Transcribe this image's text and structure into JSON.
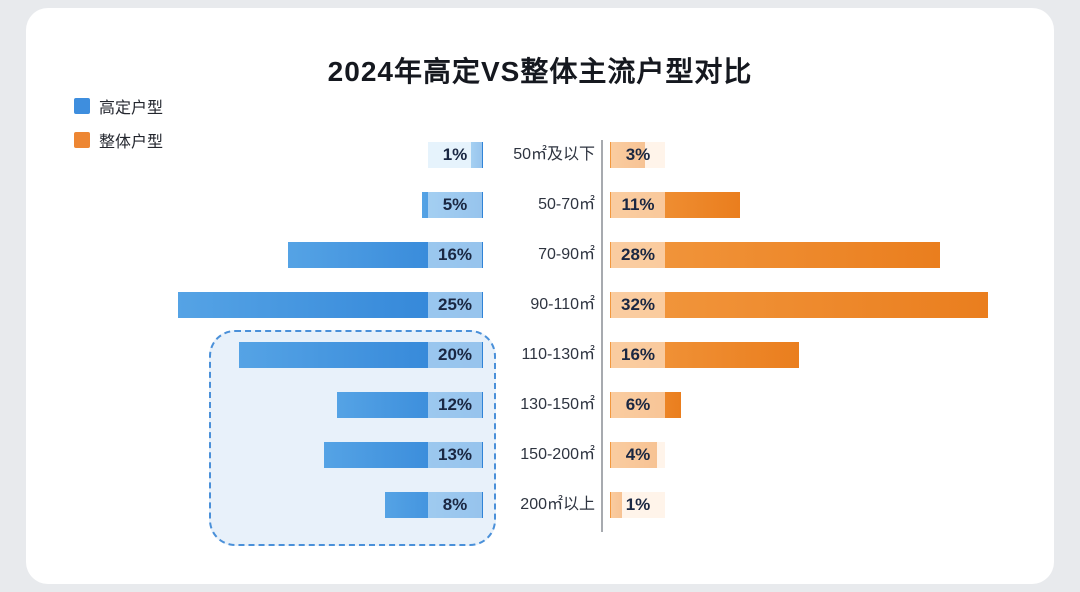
{
  "title": "2024年高定VS整体主流户型对比",
  "legend": {
    "items": [
      {
        "label": "高定户型",
        "color": "#3E8EDE"
      },
      {
        "label": "整体户型",
        "color": "#ED8633"
      }
    ]
  },
  "chart_data": {
    "type": "bar",
    "variant": "diverging-horizontal",
    "title": "2024年高定VS整体主流户型对比",
    "categories": [
      "50㎡及以下",
      "50-70㎡",
      "70-90㎡",
      "90-110㎡",
      "110-130㎡",
      "130-150㎡",
      "150-200㎡",
      "200㎡以上"
    ],
    "series": [
      {
        "name": "高定户型",
        "side": "left",
        "color": "#3E8EDE",
        "values": [
          1,
          5,
          16,
          25,
          20,
          12,
          13,
          8
        ],
        "labels": [
          "1%",
          "5%",
          "16%",
          "25%",
          "20%",
          "12%",
          "13%",
          "8%"
        ]
      },
      {
        "name": "整体户型",
        "side": "right",
        "color": "#ED8633",
        "values": [
          3,
          11,
          28,
          32,
          16,
          6,
          4,
          1
        ],
        "labels": [
          "3%",
          "11%",
          "28%",
          "32%",
          "16%",
          "6%",
          "4%",
          "1%"
        ]
      }
    ],
    "value_unit": "%",
    "grid": false,
    "legend_position": "top-left",
    "highlight": {
      "side": "left",
      "categories": [
        "110-130㎡",
        "130-150㎡",
        "150-200㎡",
        "200㎡以上"
      ],
      "style": "dashed-blue-rounded-box"
    }
  }
}
